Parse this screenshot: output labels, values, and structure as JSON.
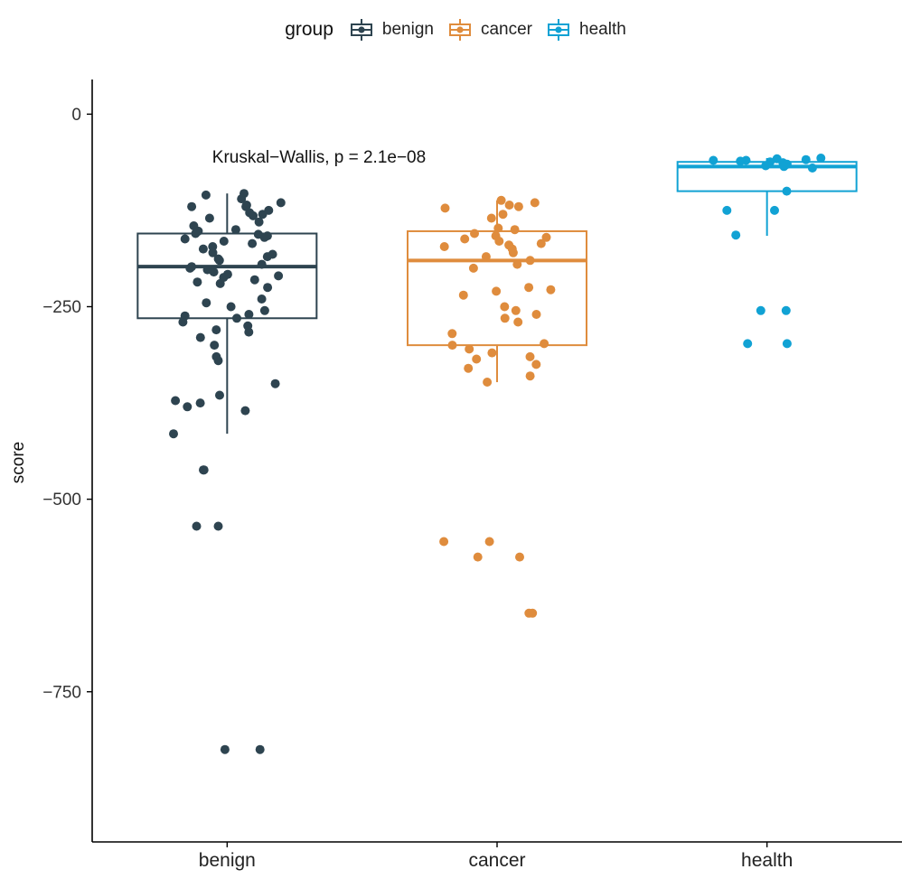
{
  "legend": {
    "title": "group",
    "items": [
      {
        "label": "benign",
        "color": "#2e4450"
      },
      {
        "label": "cancer",
        "color": "#df8c3d"
      },
      {
        "label": "health",
        "color": "#11a2d4"
      }
    ]
  },
  "chart_data": {
    "type": "box",
    "xlabel": "",
    "ylabel": "score",
    "ylim": [
      -945,
      45
    ],
    "yticks": [
      0,
      -250,
      -500,
      -750
    ],
    "ytick_labels": [
      "0",
      "−250",
      "−500",
      "−750"
    ],
    "categories": [
      "benign",
      "cancer",
      "health"
    ],
    "annotation": "Kruskal−Wallis, p = 2.1e−08",
    "groups": [
      {
        "name": "benign",
        "color": "#2e4450",
        "box": {
          "whisker_low": -415,
          "q1": -265,
          "median": -198,
          "q3": -155,
          "whisker_high": -103
        },
        "points": [
          -103,
          -105,
          -110,
          -115,
          -118,
          -120,
          -120,
          -125,
          -128,
          -130,
          -132,
          -135,
          -140,
          -145,
          -150,
          -152,
          -155,
          -156,
          -158,
          -160,
          -162,
          -165,
          -168,
          -172,
          -175,
          -180,
          -182,
          -185,
          -188,
          -190,
          -195,
          -198,
          -200,
          -202,
          -205,
          -208,
          -210,
          -212,
          -215,
          -218,
          -220,
          -225,
          -240,
          -245,
          -250,
          -255,
          -260,
          -262,
          -265,
          -270,
          -275,
          -280,
          -283,
          -290,
          -300,
          -315,
          -320,
          -350,
          -365,
          -372,
          -375,
          -380,
          -385,
          -415,
          -462,
          -462,
          -535,
          -535,
          -825,
          -825
        ]
      },
      {
        "name": "cancer",
        "color": "#df8c3d",
        "box": {
          "whisker_low": -348,
          "q1": -300,
          "median": -190,
          "q3": -152,
          "whisker_high": -112
        },
        "points": [
          -112,
          -115,
          -118,
          -120,
          -122,
          -130,
          -135,
          -148,
          -150,
          -155,
          -158,
          -160,
          -162,
          -165,
          -168,
          -170,
          -172,
          -175,
          -180,
          -185,
          -190,
          -195,
          -200,
          -225,
          -228,
          -230,
          -235,
          -250,
          -255,
          -260,
          -265,
          -270,
          -285,
          -298,
          -300,
          -305,
          -310,
          -315,
          -318,
          -325,
          -330,
          -340,
          -348,
          -555,
          -555,
          -575,
          -575,
          -648,
          -648
        ]
      },
      {
        "name": "health",
        "color": "#11a2d4",
        "box": {
          "whisker_low": -158,
          "q1": -100,
          "median": -68,
          "q3": -62,
          "whisker_high": -57
        },
        "points": [
          -57,
          -58,
          -59,
          -60,
          -60,
          -61,
          -62,
          -63,
          -65,
          -66,
          -67,
          -68,
          -70,
          -100,
          -125,
          -125,
          -157,
          -255,
          -255,
          -298,
          -298
        ]
      }
    ]
  }
}
